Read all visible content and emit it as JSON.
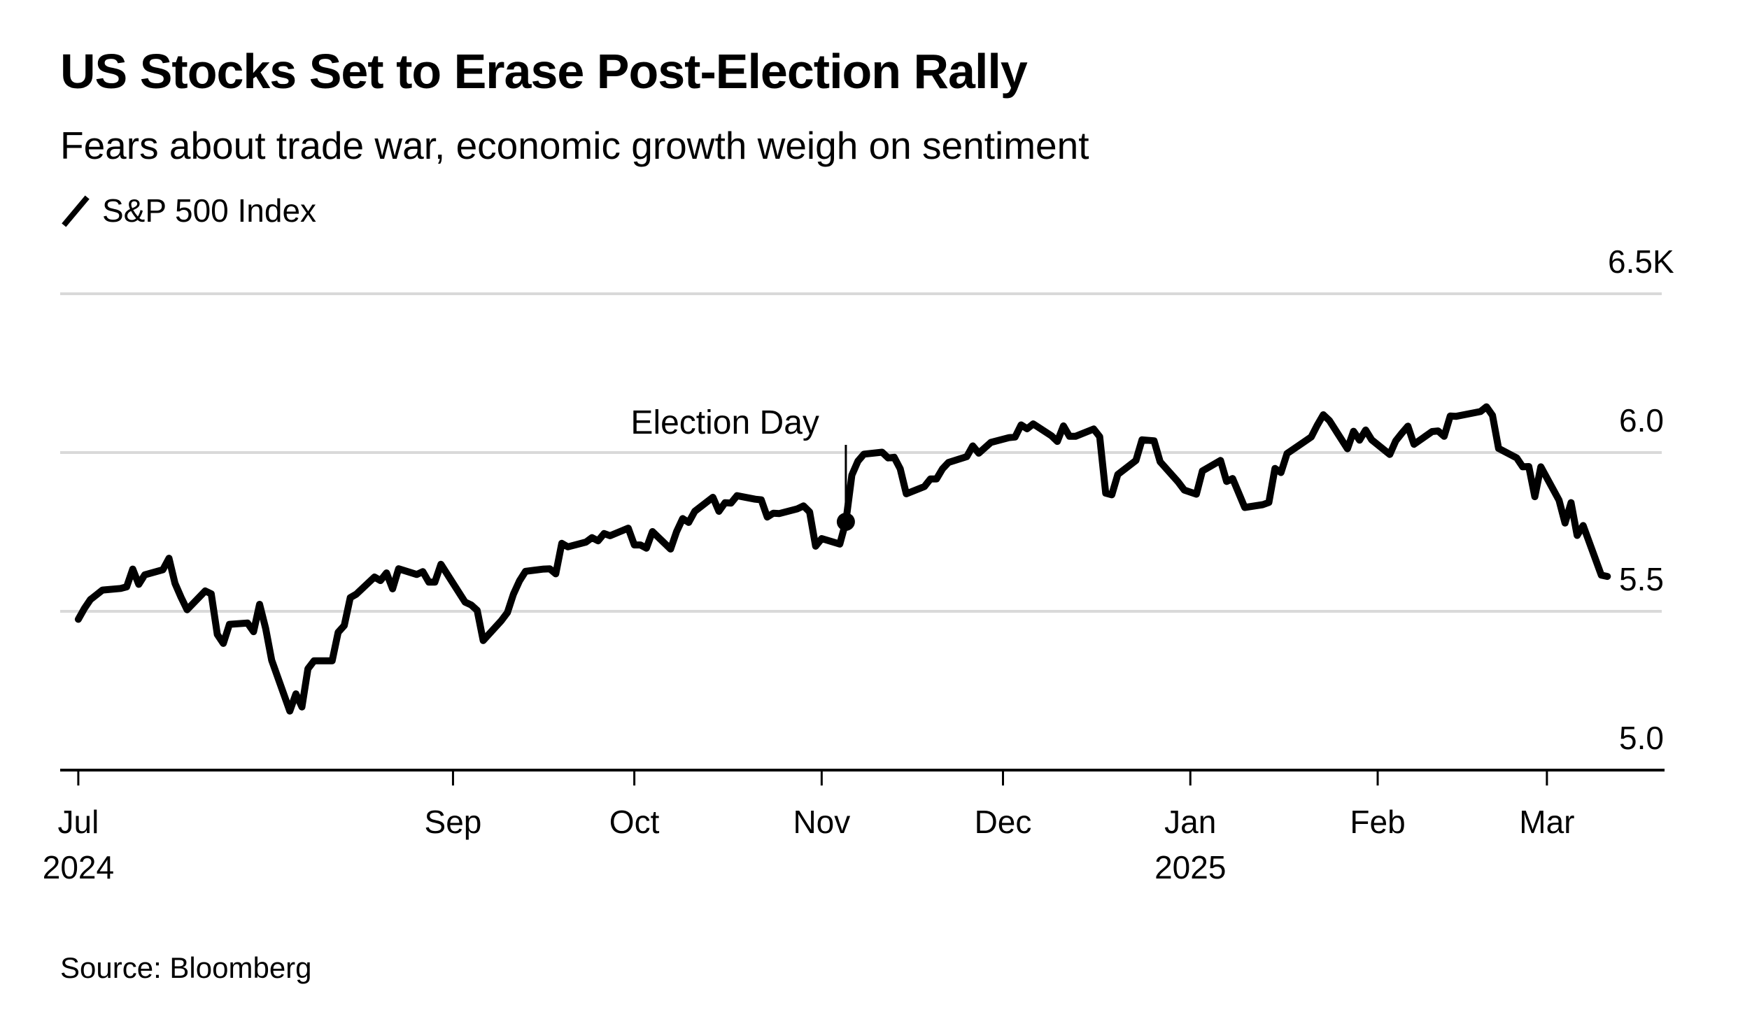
{
  "header": {
    "title": "US Stocks Set to Erase Post-Election Rally",
    "subtitle": "Fears about trade war, economic growth weigh on sentiment"
  },
  "legend": {
    "icon": "line-swatch-icon",
    "label": "S&P 500 Index",
    "color": "#000000"
  },
  "footer": {
    "source": "Source: Bloomberg"
  },
  "chart_data": {
    "type": "line",
    "title": "US Stocks Set to Erase Post-Election Rally",
    "subtitle": "Fears about trade war, economic growth weigh on sentiment",
    "xlabel": "",
    "ylabel": "",
    "y_unit": "K",
    "ylim": [
      5000,
      6500
    ],
    "yticks": [
      {
        "value": 6500,
        "label": "6.5K"
      },
      {
        "value": 6000,
        "label": "6.0"
      },
      {
        "value": 5500,
        "label": "5.5"
      },
      {
        "value": 5000,
        "label": "5.0"
      }
    ],
    "xlim": [
      "2024-06-28",
      "2025-03-20"
    ],
    "xticks": [
      {
        "date": "2024-07-01",
        "label": "Jul",
        "sublabel": "2024"
      },
      {
        "date": "2024-09-01",
        "label": "Sep",
        "sublabel": ""
      },
      {
        "date": "2024-10-01",
        "label": "Oct",
        "sublabel": ""
      },
      {
        "date": "2024-11-01",
        "label": "Nov",
        "sublabel": ""
      },
      {
        "date": "2024-12-01",
        "label": "Dec",
        "sublabel": ""
      },
      {
        "date": "2025-01-01",
        "label": "Jan",
        "sublabel": "2025"
      },
      {
        "date": "2025-02-01",
        "label": "Feb",
        "sublabel": ""
      },
      {
        "date": "2025-03-01",
        "label": "Mar",
        "sublabel": ""
      }
    ],
    "grid": true,
    "legend_position": "top-left",
    "annotations": [
      {
        "label": "Election Day",
        "date": "2024-11-05",
        "value": 5782
      }
    ],
    "series": [
      {
        "name": "S&P 500 Index",
        "color": "#000000",
        "points": [
          [
            "2024-07-01",
            5475
          ],
          [
            "2024-07-02",
            5509
          ],
          [
            "2024-07-03",
            5537
          ],
          [
            "2024-07-05",
            5567
          ],
          [
            "2024-07-08",
            5572
          ],
          [
            "2024-07-09",
            5577
          ],
          [
            "2024-07-10",
            5633
          ],
          [
            "2024-07-11",
            5585
          ],
          [
            "2024-07-12",
            5615
          ],
          [
            "2024-07-15",
            5631
          ],
          [
            "2024-07-16",
            5667
          ],
          [
            "2024-07-17",
            5588
          ],
          [
            "2024-07-18",
            5544
          ],
          [
            "2024-07-19",
            5505
          ],
          [
            "2024-07-22",
            5564
          ],
          [
            "2024-07-23",
            5555
          ],
          [
            "2024-07-24",
            5427
          ],
          [
            "2024-07-25",
            5399
          ],
          [
            "2024-07-26",
            5459
          ],
          [
            "2024-07-29",
            5463
          ],
          [
            "2024-07-30",
            5436
          ],
          [
            "2024-07-31",
            5522
          ],
          [
            "2024-08-01",
            5446
          ],
          [
            "2024-08-02",
            5346
          ],
          [
            "2024-08-05",
            5186
          ],
          [
            "2024-08-06",
            5240
          ],
          [
            "2024-08-07",
            5199
          ],
          [
            "2024-08-08",
            5319
          ],
          [
            "2024-08-09",
            5344
          ],
          [
            "2024-08-12",
            5344
          ],
          [
            "2024-08-13",
            5434
          ],
          [
            "2024-08-14",
            5455
          ],
          [
            "2024-08-15",
            5543
          ],
          [
            "2024-08-16",
            5554
          ],
          [
            "2024-08-19",
            5608
          ],
          [
            "2024-08-20",
            5597
          ],
          [
            "2024-08-21",
            5621
          ],
          [
            "2024-08-22",
            5571
          ],
          [
            "2024-08-23",
            5634
          ],
          [
            "2024-08-26",
            5616
          ],
          [
            "2024-08-27",
            5625
          ],
          [
            "2024-08-28",
            5592
          ],
          [
            "2024-08-29",
            5592
          ],
          [
            "2024-08-30",
            5648
          ],
          [
            "2024-09-03",
            5529
          ],
          [
            "2024-09-04",
            5520
          ],
          [
            "2024-09-05",
            5503
          ],
          [
            "2024-09-06",
            5408
          ],
          [
            "2024-09-09",
            5471
          ],
          [
            "2024-09-10",
            5496
          ],
          [
            "2024-09-11",
            5554
          ],
          [
            "2024-09-12",
            5596
          ],
          [
            "2024-09-13",
            5626
          ],
          [
            "2024-09-16",
            5633
          ],
          [
            "2024-09-17",
            5634
          ],
          [
            "2024-09-18",
            5618
          ],
          [
            "2024-09-19",
            5714
          ],
          [
            "2024-09-20",
            5703
          ],
          [
            "2024-09-23",
            5718
          ],
          [
            "2024-09-24",
            5732
          ],
          [
            "2024-09-25",
            5722
          ],
          [
            "2024-09-26",
            5745
          ],
          [
            "2024-09-27",
            5738
          ],
          [
            "2024-09-30",
            5762
          ],
          [
            "2024-10-01",
            5709
          ],
          [
            "2024-10-02",
            5709
          ],
          [
            "2024-10-03",
            5699
          ],
          [
            "2024-10-04",
            5751
          ],
          [
            "2024-10-07",
            5696
          ],
          [
            "2024-10-08",
            5751
          ],
          [
            "2024-10-09",
            5792
          ],
          [
            "2024-10-10",
            5780
          ],
          [
            "2024-10-11",
            5815
          ],
          [
            "2024-10-14",
            5859
          ],
          [
            "2024-10-15",
            5815
          ],
          [
            "2024-10-16",
            5842
          ],
          [
            "2024-10-17",
            5841
          ],
          [
            "2024-10-18",
            5864
          ],
          [
            "2024-10-21",
            5853
          ],
          [
            "2024-10-22",
            5851
          ],
          [
            "2024-10-23",
            5797
          ],
          [
            "2024-10-24",
            5809
          ],
          [
            "2024-10-25",
            5808
          ],
          [
            "2024-10-28",
            5823
          ],
          [
            "2024-10-29",
            5832
          ],
          [
            "2024-10-30",
            5813
          ],
          [
            "2024-10-31",
            5705
          ],
          [
            "2024-11-01",
            5729
          ],
          [
            "2024-11-04",
            5712
          ],
          [
            "2024-11-05",
            5782
          ],
          [
            "2024-11-06",
            5929
          ],
          [
            "2024-11-07",
            5973
          ],
          [
            "2024-11-08",
            5995
          ],
          [
            "2024-11-11",
            6001
          ],
          [
            "2024-11-12",
            5983
          ],
          [
            "2024-11-13",
            5985
          ],
          [
            "2024-11-14",
            5949
          ],
          [
            "2024-11-15",
            5870
          ],
          [
            "2024-11-18",
            5893
          ],
          [
            "2024-11-19",
            5917
          ],
          [
            "2024-11-20",
            5917
          ],
          [
            "2024-11-21",
            5949
          ],
          [
            "2024-11-22",
            5969
          ],
          [
            "2024-11-25",
            5987
          ],
          [
            "2024-11-26",
            6021
          ],
          [
            "2024-11-27",
            5998
          ],
          [
            "2024-11-29",
            6032
          ],
          [
            "2024-12-02",
            6047
          ],
          [
            "2024-12-03",
            6049
          ],
          [
            "2024-12-04",
            6087
          ],
          [
            "2024-12-05",
            6075
          ],
          [
            "2024-12-06",
            6090
          ],
          [
            "2024-12-09",
            6053
          ],
          [
            "2024-12-10",
            6035
          ],
          [
            "2024-12-11",
            6084
          ],
          [
            "2024-12-12",
            6051
          ],
          [
            "2024-12-13",
            6051
          ],
          [
            "2024-12-16",
            6074
          ],
          [
            "2024-12-17",
            6050
          ],
          [
            "2024-12-18",
            5872
          ],
          [
            "2024-12-19",
            5867
          ],
          [
            "2024-12-20",
            5931
          ],
          [
            "2024-12-23",
            5975
          ],
          [
            "2024-12-24",
            6040
          ],
          [
            "2024-12-26",
            6037
          ],
          [
            "2024-12-27",
            5971
          ],
          [
            "2024-12-30",
            5907
          ],
          [
            "2024-12-31",
            5882
          ],
          [
            "2025-01-02",
            5869
          ],
          [
            "2025-01-03",
            5942
          ],
          [
            "2025-01-06",
            5975
          ],
          [
            "2025-01-07",
            5909
          ],
          [
            "2025-01-08",
            5918
          ],
          [
            "2025-01-10",
            5827
          ],
          [
            "2025-01-13",
            5836
          ],
          [
            "2025-01-14",
            5843
          ],
          [
            "2025-01-15",
            5950
          ],
          [
            "2025-01-16",
            5937
          ],
          [
            "2025-01-17",
            5997
          ],
          [
            "2025-01-21",
            6049
          ],
          [
            "2025-01-22",
            6086
          ],
          [
            "2025-01-23",
            6119
          ],
          [
            "2025-01-24",
            6101
          ],
          [
            "2025-01-27",
            6012
          ],
          [
            "2025-01-28",
            6067
          ],
          [
            "2025-01-29",
            6039
          ],
          [
            "2025-01-30",
            6071
          ],
          [
            "2025-01-31",
            6040
          ],
          [
            "2025-02-03",
            5994
          ],
          [
            "2025-02-04",
            6037
          ],
          [
            "2025-02-05",
            6061
          ],
          [
            "2025-02-06",
            6083
          ],
          [
            "2025-02-07",
            6026
          ],
          [
            "2025-02-10",
            6066
          ],
          [
            "2025-02-11",
            6068
          ],
          [
            "2025-02-12",
            6051
          ],
          [
            "2025-02-13",
            6115
          ],
          [
            "2025-02-14",
            6114
          ],
          [
            "2025-02-18",
            6129
          ],
          [
            "2025-02-19",
            6144
          ],
          [
            "2025-02-20",
            6117
          ],
          [
            "2025-02-21",
            6013
          ],
          [
            "2025-02-24",
            5983
          ],
          [
            "2025-02-25",
            5955
          ],
          [
            "2025-02-26",
            5956
          ],
          [
            "2025-02-27",
            5861
          ],
          [
            "2025-02-28",
            5955
          ],
          [
            "2025-03-03",
            5850
          ],
          [
            "2025-03-04",
            5778
          ],
          [
            "2025-03-05",
            5842
          ],
          [
            "2025-03-06",
            5739
          ],
          [
            "2025-03-07",
            5770
          ],
          [
            "2025-03-10",
            5614
          ],
          [
            "2025-03-11",
            5610
          ]
        ]
      }
    ],
    "source": "Source: Bloomberg"
  }
}
